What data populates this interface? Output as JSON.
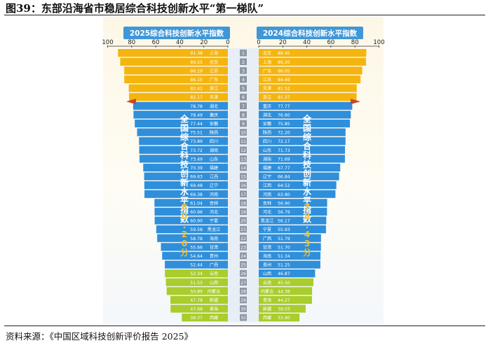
{
  "figure_title": "图39：东部沿海省市稳居综合科技创新水平“第一梯队”",
  "source_note": "资料来源：《中国区域科技创新评价报告 2025》",
  "colors": {
    "top_tier": "#f5b50f",
    "mid_tier": "#2f8fdb",
    "low_tier": "#a9cd2c",
    "header_box": "#3f97d8",
    "center_column": "#e7eef6",
    "rank_box": "#8d97a3",
    "national_text": "#f0bf30"
  },
  "chart_data": {
    "type": "bar",
    "layout": "back-to-back horizontal bars with rank column",
    "left_panel": {
      "header": "2025综合科技创新水平指数",
      "axis_ticks": [
        "100",
        "80",
        "60",
        "40",
        "20",
        "0"
      ],
      "xlim": [
        0,
        100
      ],
      "national_label": "全国综合科技创新水平指数",
      "national_value": "80.20分",
      "series": [
        {
          "rank": "1",
          "region": "上海",
          "value": 91.38
        },
        {
          "rank": "2",
          "region": "北京",
          "value": 89.55
        },
        {
          "rank": "3",
          "region": "江苏",
          "value": 86.19
        },
        {
          "rank": "4",
          "region": "广东",
          "value": 86.15
        },
        {
          "rank": "5",
          "region": "浙江",
          "value": 82.41
        },
        {
          "rank": "6",
          "region": "天津",
          "value": 82.17
        },
        {
          "rank": "7",
          "region": "湖北",
          "value": 78.78
        },
        {
          "rank": "8",
          "region": "重庆",
          "value": 78.49
        },
        {
          "rank": "9",
          "region": "安徽",
          "value": 77.44
        },
        {
          "rank": "10",
          "region": "陕西",
          "value": 75.51
        },
        {
          "rank": "11",
          "region": "四川",
          "value": 73.89
        },
        {
          "rank": "12",
          "region": "湖南",
          "value": 73.72
        },
        {
          "rank": "13",
          "region": "山东",
          "value": 73.49
        },
        {
          "rank": "14",
          "region": "福建",
          "value": 70.39
        },
        {
          "rank": "15",
          "region": "江西",
          "value": 69.63
        },
        {
          "rank": "16",
          "region": "辽宁",
          "value": 69.48
        },
        {
          "rank": "17",
          "region": "河南",
          "value": 69.38
        },
        {
          "rank": "18",
          "region": "吉林",
          "value": 61.04
        },
        {
          "rank": "19",
          "region": "河北",
          "value": 60.96
        },
        {
          "rank": "20",
          "region": "宁夏",
          "value": 60.9
        },
        {
          "rank": "21",
          "region": "黑龙江",
          "value": 59.58
        },
        {
          "rank": "22",
          "region": "海南",
          "value": 58.78
        },
        {
          "rank": "23",
          "region": "甘肃",
          "value": 55.66
        },
        {
          "rank": "24",
          "region": "贵州",
          "value": 54.64
        },
        {
          "rank": "25",
          "region": "广西",
          "value": 52.44
        },
        {
          "rank": "26",
          "region": "云南",
          "value": 52.34
        },
        {
          "rank": "27",
          "region": "山西",
          "value": 51.53
        },
        {
          "rank": "28",
          "region": "内蒙古",
          "value": 50.89
        },
        {
          "rank": "29",
          "region": "新疆",
          "value": 47.78
        },
        {
          "rank": "30",
          "region": "青海",
          "value": 47.68
        },
        {
          "rank": "31",
          "region": "西藏",
          "value": 38.37
        }
      ]
    },
    "right_panel": {
      "header": "2024综合科技创新水平指数",
      "axis_ticks": [
        "0",
        "20",
        "40",
        "60",
        "80",
        "100"
      ],
      "xlim": [
        0,
        100
      ],
      "national_label": "全国综合科技创新水平指数",
      "national_value": "78.43分",
      "series": [
        {
          "rank": "1",
          "region": "北京",
          "value": 89.45
        },
        {
          "rank": "2",
          "region": "上海",
          "value": 89.2
        },
        {
          "rank": "3",
          "region": "广东",
          "value": 86.05
        },
        {
          "rank": "4",
          "region": "江苏",
          "value": 84.69
        },
        {
          "rank": "5",
          "region": "天津",
          "value": 81.52
        },
        {
          "rank": "6",
          "region": "浙江",
          "value": 81.37
        },
        {
          "rank": "7",
          "region": "重庆",
          "value": 77.77
        },
        {
          "rank": "8",
          "region": "湖北",
          "value": 76.6
        },
        {
          "rank": "9",
          "region": "安徽",
          "value": 75.85
        },
        {
          "rank": "10",
          "region": "陕西",
          "value": 72.2
        },
        {
          "rank": "11",
          "region": "四川",
          "value": 72.17
        },
        {
          "rank": "12",
          "region": "山东",
          "value": 71.73
        },
        {
          "rank": "13",
          "region": "湖南",
          "value": 71.69
        },
        {
          "rank": "14",
          "region": "福建",
          "value": 67.77
        },
        {
          "rank": "15",
          "region": "辽宁",
          "value": 66.84
        },
        {
          "rank": "16",
          "region": "江西",
          "value": 64.52
        },
        {
          "rank": "17",
          "region": "河南",
          "value": 63.8
        },
        {
          "rank": "18",
          "region": "吉林",
          "value": 56.9
        },
        {
          "rank": "19",
          "region": "河北",
          "value": 56.79
        },
        {
          "rank": "20",
          "region": "黑龙江",
          "value": 56.17
        },
        {
          "rank": "21",
          "region": "宁夏",
          "value": 55.93
        },
        {
          "rank": "22",
          "region": "广西",
          "value": 51.79
        },
        {
          "rank": "23",
          "region": "甘肃",
          "value": 51.7
        },
        {
          "rank": "24",
          "region": "海南",
          "value": 51.34
        },
        {
          "rank": "25",
          "region": "贵州",
          "value": 51.25
        },
        {
          "rank": "26",
          "region": "山西",
          "value": 46.87
        },
        {
          "rank": "27",
          "region": "云南",
          "value": 45.5
        },
        {
          "rank": "28",
          "region": "内蒙古",
          "value": 44.38
        },
        {
          "rank": "29",
          "region": "青海",
          "value": 44.27
        },
        {
          "rank": "30",
          "region": "新疆",
          "value": 39.03
        },
        {
          "rank": "31",
          "region": "西藏",
          "value": 33.9
        }
      ]
    }
  }
}
